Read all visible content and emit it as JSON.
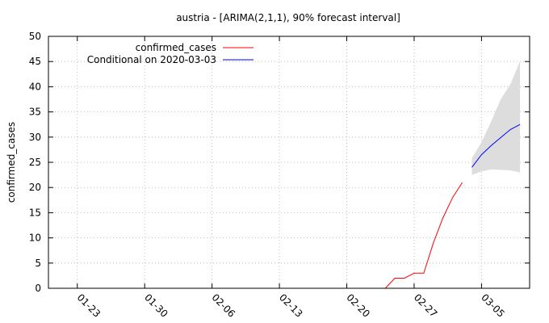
{
  "chart_data": {
    "type": "line",
    "title": "austria -  [ARIMA(2,1,1), 90% forecast interval]",
    "ylabel": "confirmed_cases",
    "xlabel": "",
    "ylim": [
      0,
      50
    ],
    "yticks": [
      0,
      5,
      10,
      15,
      20,
      25,
      30,
      35,
      40,
      45,
      50
    ],
    "xlim": [
      "2020-01-20",
      "2020-03-10"
    ],
    "xticks": [
      "2020-01-23",
      "2020-01-30",
      "2020-02-06",
      "2020-02-13",
      "2020-02-20",
      "2020-02-27",
      "2020-03-05"
    ],
    "xtick_labels": [
      "01-23",
      "01-30",
      "02-06",
      "02-13",
      "02-20",
      "02-27",
      "03-05"
    ],
    "grid": true,
    "legend_position": "top-left",
    "series": [
      {
        "name": "confirmed_cases",
        "color": "#ff0000",
        "x": [
          "2020-02-24",
          "2020-02-25",
          "2020-02-26",
          "2020-02-27",
          "2020-02-28",
          "2020-02-29",
          "2020-03-01",
          "2020-03-02",
          "2020-03-03"
        ],
        "y": [
          0,
          2,
          2,
          3,
          3,
          9,
          14,
          18,
          21
        ]
      },
      {
        "name": "Conditional on 2020-03-03",
        "color": "#0000ff",
        "x": [
          "2020-03-04",
          "2020-03-05",
          "2020-03-06",
          "2020-03-07",
          "2020-03-08",
          "2020-03-09"
        ],
        "y": [
          24,
          26.5,
          28.3,
          29.9,
          31.5,
          32.5
        ]
      }
    ],
    "forecast_interval": {
      "color": "#dddddd",
      "x": [
        "2020-03-04",
        "2020-03-05",
        "2020-03-06",
        "2020-03-07",
        "2020-03-08",
        "2020-03-09"
      ],
      "lower": [
        22.5,
        23.2,
        23.6,
        23.5,
        23.4,
        23.0
      ],
      "upper": [
        25.8,
        29.0,
        33.1,
        37.5,
        40.5,
        45.1
      ]
    }
  }
}
